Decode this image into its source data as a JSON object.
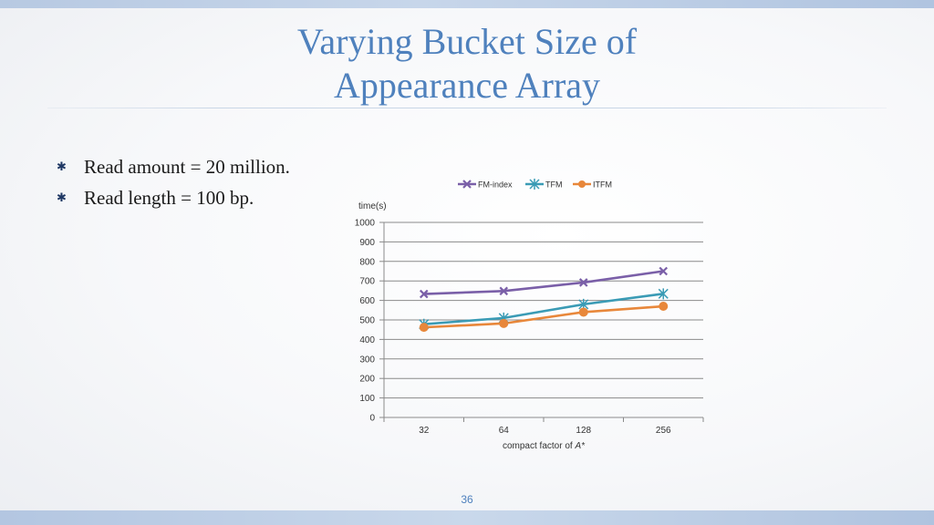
{
  "slide": {
    "title_line1": "Varying Bucket Size of",
    "title_line2": "Appearance Array",
    "bullets": [
      "Read amount = 20 million.",
      "Read length = 100 bp."
    ],
    "bullet_icon": "asterisk-icon",
    "page_number": "36"
  },
  "chart_data": {
    "type": "line",
    "title": "",
    "xlabel": "compact factor of ",
    "xlabel_italic": "A*",
    "ylabel": "time(s)",
    "categories": [
      "32",
      "64",
      "128",
      "256"
    ],
    "ylim": [
      0,
      1000
    ],
    "yticks": [
      0,
      100,
      200,
      300,
      400,
      500,
      600,
      700,
      800,
      900,
      1000
    ],
    "grid": true,
    "legend_position": "top",
    "series": [
      {
        "name": "FM-index",
        "values": [
          633,
          648,
          692,
          750
        ],
        "color": "#7a5fa8",
        "marker": "x"
      },
      {
        "name": "TFM",
        "values": [
          478,
          510,
          580,
          634
        ],
        "color": "#3a9bb5",
        "marker": "star"
      },
      {
        "name": "ITFM",
        "values": [
          462,
          482,
          540,
          570
        ],
        "color": "#e8873a",
        "marker": "circle"
      }
    ]
  }
}
